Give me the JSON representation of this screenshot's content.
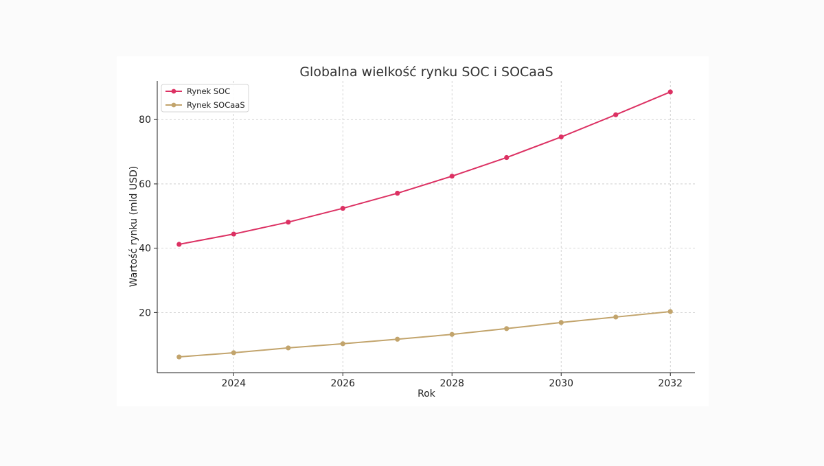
{
  "chart_data": {
    "type": "line",
    "title": "Globalna wielkość rynku SOC i SOCaaS",
    "xlabel": "Rok",
    "ylabel": "Wartość rynku (mld USD)",
    "x": [
      2023,
      2024,
      2025,
      2026,
      2027,
      2028,
      2029,
      2030,
      2031,
      2032
    ],
    "xlim": [
      2022.6,
      2032.45
    ],
    "ylim": [
      1.3,
      92
    ],
    "xticks": [
      2024,
      2026,
      2028,
      2030,
      2032
    ],
    "yticks": [
      20,
      40,
      60,
      80
    ],
    "grid": true,
    "legend_position": "top-left",
    "series": [
      {
        "name": "Rynek SOC",
        "color": "#dc3163",
        "values": [
          41.2,
          44.4,
          48.1,
          52.4,
          57.1,
          62.4,
          68.2,
          74.6,
          81.5,
          88.6
        ]
      },
      {
        "name": "Rynek SOCaaS",
        "color": "#c2a46c",
        "values": [
          6.2,
          7.5,
          9.0,
          10.3,
          11.7,
          13.2,
          15.0,
          16.9,
          18.6,
          20.3
        ]
      }
    ]
  }
}
